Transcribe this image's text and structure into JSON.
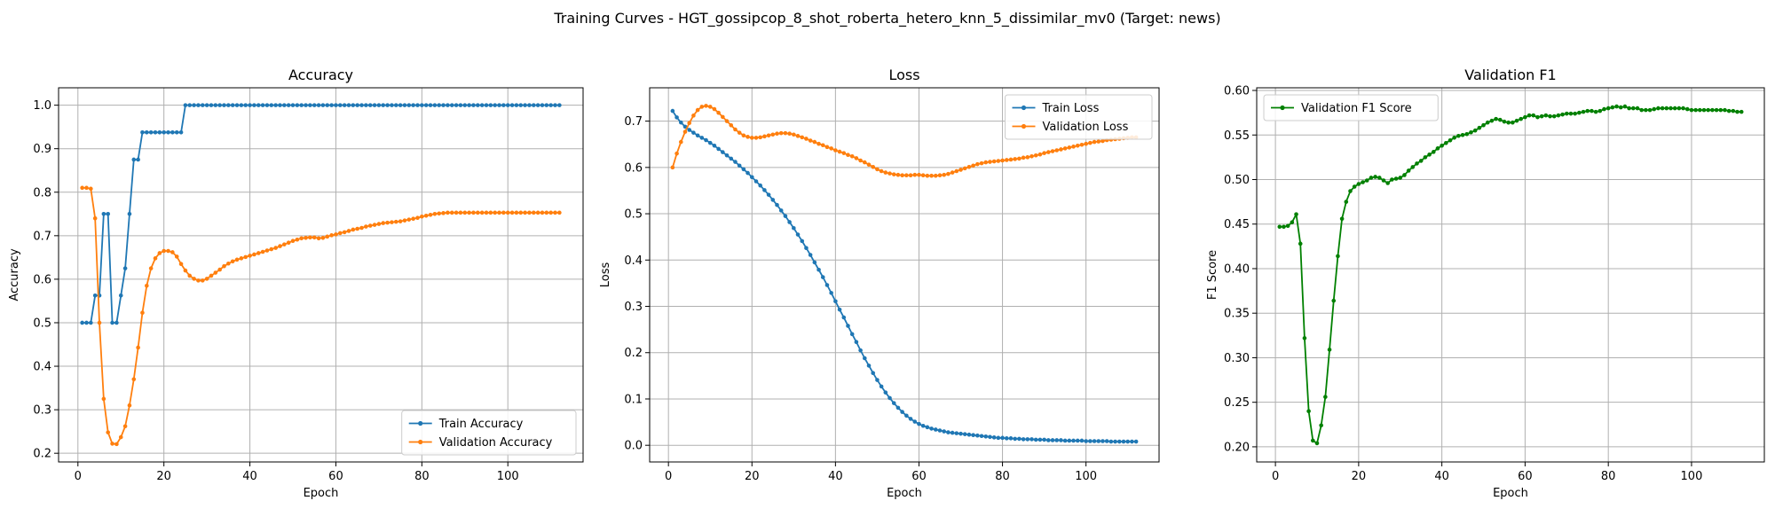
{
  "figure": {
    "suptitle": "Training Curves - HGT_gossipcop_8_shot_roberta_hetero_knn_5_dissimilar_mv0 (Target: news)"
  },
  "colors": {
    "train": "#1f77b4",
    "validation": "#ff7f0e",
    "f1": "#008000",
    "grid": "#b0b0b0"
  },
  "chart_data": [
    {
      "type": "line",
      "title": "Accuracy",
      "xlabel": "Epoch",
      "ylabel": "Accuracy",
      "xlim": [
        -4.5,
        117.5
      ],
      "ylim": [
        0.18,
        1.04
      ],
      "xticks": [
        0,
        20,
        40,
        60,
        80,
        100
      ],
      "yticks": [
        0.2,
        0.3,
        0.4,
        0.5,
        0.6,
        0.7,
        0.8,
        0.9,
        1.0
      ],
      "ytick_decimals": 1,
      "grid": true,
      "legend_position": "lower-right",
      "series": [
        {
          "name": "Train Accuracy",
          "color": "#1f77b4",
          "x_start": 1,
          "values": [
            0.5,
            0.5,
            0.5,
            0.5625,
            0.5625,
            0.75,
            0.75,
            0.5,
            0.5,
            0.5625,
            0.625,
            0.75,
            0.875,
            0.875,
            0.9375,
            0.9375,
            0.9375,
            0.9375,
            0.9375,
            0.9375,
            0.9375,
            0.9375,
            0.9375,
            0.9375,
            1.0,
            1.0,
            1.0,
            1.0,
            1.0,
            1.0,
            1.0,
            1.0,
            1.0,
            1.0,
            1.0,
            1.0,
            1.0,
            1.0,
            1.0,
            1.0,
            1.0,
            1.0,
            1.0,
            1.0,
            1.0,
            1.0,
            1.0,
            1.0,
            1.0,
            1.0,
            1.0,
            1.0,
            1.0,
            1.0,
            1.0,
            1.0,
            1.0,
            1.0,
            1.0,
            1.0,
            1.0,
            1.0,
            1.0,
            1.0,
            1.0,
            1.0,
            1.0,
            1.0,
            1.0,
            1.0,
            1.0,
            1.0,
            1.0,
            1.0,
            1.0,
            1.0,
            1.0,
            1.0,
            1.0,
            1.0,
            1.0,
            1.0,
            1.0,
            1.0,
            1.0,
            1.0,
            1.0,
            1.0,
            1.0,
            1.0,
            1.0,
            1.0,
            1.0,
            1.0,
            1.0,
            1.0,
            1.0,
            1.0,
            1.0,
            1.0,
            1.0,
            1.0,
            1.0,
            1.0,
            1.0,
            1.0,
            1.0,
            1.0,
            1.0,
            1.0,
            1.0,
            1.0
          ]
        },
        {
          "name": "Validation Accuracy",
          "color": "#ff7f0e",
          "x_start": 1,
          "values": [
            0.81,
            0.81,
            0.808,
            0.74,
            0.5,
            0.325,
            0.248,
            0.222,
            0.221,
            0.237,
            0.262,
            0.31,
            0.37,
            0.443,
            0.523,
            0.585,
            0.625,
            0.648,
            0.66,
            0.665,
            0.665,
            0.662,
            0.652,
            0.635,
            0.62,
            0.608,
            0.601,
            0.597,
            0.597,
            0.601,
            0.608,
            0.615,
            0.622,
            0.63,
            0.636,
            0.641,
            0.645,
            0.648,
            0.651,
            0.654,
            0.657,
            0.66,
            0.663,
            0.666,
            0.669,
            0.672,
            0.676,
            0.68,
            0.684,
            0.688,
            0.691,
            0.694,
            0.695,
            0.696,
            0.696,
            0.694,
            0.695,
            0.698,
            0.701,
            0.703,
            0.706,
            0.708,
            0.711,
            0.714,
            0.716,
            0.718,
            0.721,
            0.723,
            0.725,
            0.727,
            0.729,
            0.73,
            0.731,
            0.732,
            0.733,
            0.735,
            0.737,
            0.739,
            0.741,
            0.744,
            0.746,
            0.748,
            0.75,
            0.751,
            0.752,
            0.753,
            0.753,
            0.753,
            0.753,
            0.753,
            0.753,
            0.753,
            0.753,
            0.753,
            0.753,
            0.753,
            0.753,
            0.753,
            0.753,
            0.753,
            0.753,
            0.753,
            0.753,
            0.753,
            0.753,
            0.753,
            0.753,
            0.753,
            0.753,
            0.753,
            0.753,
            0.753
          ]
        }
      ]
    },
    {
      "type": "line",
      "title": "Loss",
      "xlabel": "Epoch",
      "ylabel": "Loss",
      "xlim": [
        -4.5,
        117.5
      ],
      "ylim": [
        -0.036,
        0.772
      ],
      "xticks": [
        0,
        20,
        40,
        60,
        80,
        100
      ],
      "yticks": [
        0.0,
        0.1,
        0.2,
        0.3,
        0.4,
        0.5,
        0.6,
        0.7
      ],
      "ytick_decimals": 1,
      "grid": true,
      "legend_position": "upper-right",
      "series": [
        {
          "name": "Train Loss",
          "color": "#1f77b4",
          "x_start": 1,
          "values": [
            0.722,
            0.708,
            0.697,
            0.688,
            0.681,
            0.675,
            0.669,
            0.664,
            0.659,
            0.653,
            0.647,
            0.64,
            0.633,
            0.626,
            0.619,
            0.612,
            0.604,
            0.596,
            0.588,
            0.579,
            0.57,
            0.561,
            0.551,
            0.541,
            0.53,
            0.519,
            0.507,
            0.495,
            0.482,
            0.469,
            0.455,
            0.441,
            0.426,
            0.411,
            0.395,
            0.379,
            0.363,
            0.346,
            0.329,
            0.311,
            0.293,
            0.276,
            0.258,
            0.24,
            0.223,
            0.205,
            0.188,
            0.172,
            0.156,
            0.141,
            0.127,
            0.114,
            0.102,
            0.091,
            0.081,
            0.072,
            0.064,
            0.057,
            0.051,
            0.046,
            0.042,
            0.039,
            0.036,
            0.034,
            0.032,
            0.03,
            0.028,
            0.027,
            0.026,
            0.025,
            0.024,
            0.023,
            0.022,
            0.021,
            0.02,
            0.019,
            0.018,
            0.017,
            0.016,
            0.016,
            0.015,
            0.015,
            0.014,
            0.014,
            0.013,
            0.013,
            0.013,
            0.012,
            0.012,
            0.012,
            0.011,
            0.011,
            0.011,
            0.011,
            0.01,
            0.01,
            0.01,
            0.01,
            0.01,
            0.009,
            0.009,
            0.009,
            0.009,
            0.009,
            0.009,
            0.008,
            0.008,
            0.008,
            0.008,
            0.008,
            0.008,
            0.008
          ]
        },
        {
          "name": "Validation Loss",
          "color": "#ff7f0e",
          "x_start": 1,
          "values": [
            0.6,
            0.63,
            0.655,
            0.677,
            0.696,
            0.712,
            0.724,
            0.731,
            0.733,
            0.731,
            0.726,
            0.718,
            0.709,
            0.7,
            0.691,
            0.682,
            0.675,
            0.669,
            0.666,
            0.664,
            0.664,
            0.665,
            0.667,
            0.669,
            0.671,
            0.673,
            0.674,
            0.674,
            0.673,
            0.671,
            0.668,
            0.665,
            0.662,
            0.658,
            0.655,
            0.651,
            0.648,
            0.644,
            0.641,
            0.637,
            0.634,
            0.631,
            0.627,
            0.624,
            0.62,
            0.615,
            0.611,
            0.606,
            0.601,
            0.596,
            0.592,
            0.589,
            0.587,
            0.585,
            0.584,
            0.583,
            0.583,
            0.583,
            0.584,
            0.584,
            0.583,
            0.582,
            0.582,
            0.582,
            0.583,
            0.584,
            0.586,
            0.589,
            0.592,
            0.595,
            0.598,
            0.601,
            0.604,
            0.607,
            0.609,
            0.611,
            0.612,
            0.613,
            0.614,
            0.615,
            0.616,
            0.617,
            0.618,
            0.619,
            0.621,
            0.622,
            0.624,
            0.626,
            0.628,
            0.631,
            0.633,
            0.635,
            0.637,
            0.639,
            0.641,
            0.643,
            0.645,
            0.647,
            0.649,
            0.651,
            0.653,
            0.655,
            0.656,
            0.657,
            0.659,
            0.66,
            0.661,
            0.662,
            0.663,
            0.664,
            0.665,
            0.665
          ]
        }
      ]
    },
    {
      "type": "line",
      "title": "Validation F1",
      "xlabel": "Epoch",
      "ylabel": "F1 Score",
      "xlim": [
        -4.5,
        117.5
      ],
      "ylim": [
        0.183,
        0.603
      ],
      "xticks": [
        0,
        20,
        40,
        60,
        80,
        100
      ],
      "yticks": [
        0.2,
        0.25,
        0.3,
        0.35,
        0.4,
        0.45,
        0.5,
        0.55,
        0.6
      ],
      "ytick_decimals": 2,
      "grid": true,
      "legend_position": "upper-left",
      "series": [
        {
          "name": "Validation F1 Score",
          "color": "#008000",
          "x_start": 1,
          "values": [
            0.447,
            0.447,
            0.448,
            0.452,
            0.461,
            0.428,
            0.322,
            0.24,
            0.207,
            0.204,
            0.224,
            0.256,
            0.309,
            0.364,
            0.414,
            0.456,
            0.475,
            0.487,
            0.492,
            0.495,
            0.497,
            0.499,
            0.502,
            0.503,
            0.502,
            0.499,
            0.496,
            0.5,
            0.501,
            0.502,
            0.505,
            0.51,
            0.514,
            0.518,
            0.521,
            0.525,
            0.528,
            0.531,
            0.535,
            0.538,
            0.541,
            0.544,
            0.547,
            0.549,
            0.55,
            0.551,
            0.553,
            0.555,
            0.558,
            0.561,
            0.564,
            0.566,
            0.568,
            0.567,
            0.565,
            0.564,
            0.564,
            0.566,
            0.568,
            0.57,
            0.572,
            0.572,
            0.57,
            0.571,
            0.572,
            0.571,
            0.571,
            0.572,
            0.573,
            0.574,
            0.574,
            0.574,
            0.575,
            0.576,
            0.577,
            0.577,
            0.576,
            0.577,
            0.579,
            0.58,
            0.581,
            0.582,
            0.581,
            0.582,
            0.58,
            0.58,
            0.58,
            0.578,
            0.578,
            0.578,
            0.579,
            0.58,
            0.58,
            0.58,
            0.58,
            0.58,
            0.58,
            0.58,
            0.579,
            0.578,
            0.578,
            0.578,
            0.578,
            0.578,
            0.578,
            0.578,
            0.578,
            0.578,
            0.577,
            0.577,
            0.576,
            0.576
          ]
        }
      ]
    }
  ]
}
